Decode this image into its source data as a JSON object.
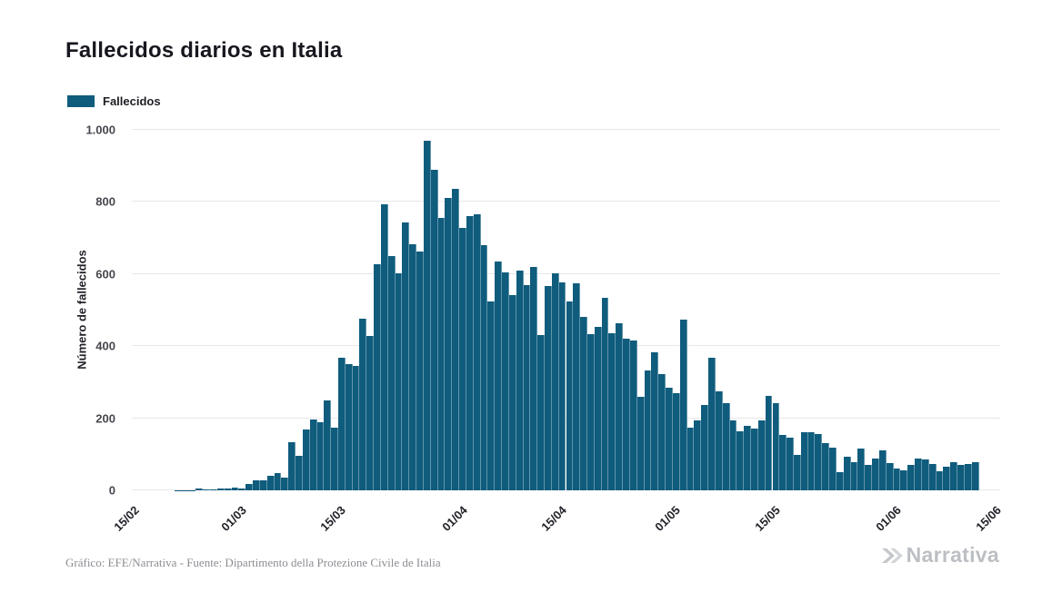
{
  "title": "Fallecidos diarios en Italia",
  "legend": {
    "label": "Fallecidos",
    "color": "#0f5c7d"
  },
  "y_axis": {
    "label": "Número de fallecidos"
  },
  "footer": {
    "credit": "Gráfico: EFE/Narrativa - Fuente: Dipartimento della Protezione Civile de Italia",
    "brand": "Narrativa"
  },
  "chart_data": {
    "type": "bar",
    "title": "Fallecidos diarios en Italia",
    "xlabel": "",
    "ylabel": "Número de fallecidos",
    "ylim": [
      0,
      1000
    ],
    "grid": "horizontal",
    "legend_position": "top-left",
    "bar_color": "#0f5c7d",
    "y_ticks": [
      0,
      200,
      400,
      600,
      800,
      1000
    ],
    "y_tick_labels": [
      "0",
      "200",
      "400",
      "600",
      "800",
      "1.000"
    ],
    "x_tick_labels": [
      "15/02",
      "01/03",
      "15/03",
      "01/04",
      "15/04",
      "01/05",
      "15/05",
      "01/06",
      "15/06"
    ],
    "x_tick_indices": [
      0,
      15,
      29,
      46,
      60,
      76,
      90,
      107,
      121
    ],
    "domain_slots": 122,
    "categories": [
      "15/02",
      "16/02",
      "17/02",
      "18/02",
      "19/02",
      "20/02",
      "21/02",
      "22/02",
      "23/02",
      "24/02",
      "25/02",
      "26/02",
      "27/02",
      "28/02",
      "29/02",
      "01/03",
      "02/03",
      "03/03",
      "04/03",
      "05/03",
      "06/03",
      "07/03",
      "08/03",
      "09/03",
      "10/03",
      "11/03",
      "12/03",
      "13/03",
      "14/03",
      "15/03",
      "16/03",
      "17/03",
      "18/03",
      "19/03",
      "20/03",
      "21/03",
      "22/03",
      "23/03",
      "24/03",
      "25/03",
      "26/03",
      "27/03",
      "28/03",
      "29/03",
      "30/03",
      "31/03",
      "01/04",
      "02/04",
      "03/04",
      "04/04",
      "05/04",
      "06/04",
      "07/04",
      "08/04",
      "09/04",
      "10/04",
      "11/04",
      "12/04",
      "13/04",
      "14/04",
      "15/04",
      "16/04",
      "17/04",
      "18/04",
      "19/04",
      "20/04",
      "21/04",
      "22/04",
      "23/04",
      "24/04",
      "25/04",
      "26/04",
      "27/04",
      "28/04",
      "29/04",
      "30/04",
      "01/05",
      "02/05",
      "03/05",
      "04/05",
      "05/05",
      "06/05",
      "07/05",
      "08/05",
      "09/05",
      "10/05",
      "11/05",
      "12/05",
      "13/05",
      "14/05",
      "15/05",
      "16/05",
      "17/05",
      "18/05",
      "19/05",
      "20/05",
      "21/05",
      "22/05",
      "23/05",
      "24/05",
      "25/05",
      "26/05",
      "27/05",
      "28/05",
      "29/05",
      "30/05",
      "31/05",
      "01/06",
      "02/06",
      "03/06",
      "04/06",
      "05/06",
      "06/06",
      "07/06",
      "08/06",
      "09/06",
      "10/06",
      "11/06",
      "12/06"
    ],
    "series": [
      {
        "name": "Fallecidos",
        "values": [
          0,
          0,
          0,
          0,
          0,
          0,
          1,
          1,
          1,
          4,
          3,
          2,
          5,
          4,
          8,
          5,
          18,
          27,
          28,
          41,
          49,
          36,
          133,
          97,
          168,
          196,
          189,
          250,
          175,
          368,
          349,
          345,
          475,
          427,
          627,
          793,
          651,
          601,
          743,
          683,
          662,
          969,
          889,
          756,
          812,
          837,
          727,
          760,
          766,
          681,
          525,
          636,
          604,
          542,
          610,
          570,
          619,
          431,
          566,
          602,
          578,
          525,
          575,
          482,
          433,
          454,
          534,
          437,
          464,
          420,
          415,
          260,
          333,
          382,
          323,
          285,
          269,
          474,
          174,
          195,
          236,
          369,
          274,
          243,
          194,
          165,
          179,
          172,
          195,
          262,
          242,
          153,
          145,
          99,
          162,
          161,
          156,
          130,
          119,
          50,
          92,
          78,
          117,
          70,
          87,
          111,
          75,
          60,
          55,
          71,
          88,
          85,
          72,
          53,
          65,
          79,
          71,
          72,
          78
        ]
      }
    ]
  }
}
